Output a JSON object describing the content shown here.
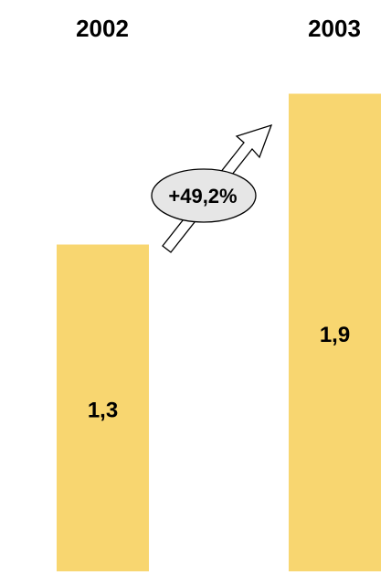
{
  "chart_data": {
    "type": "bar",
    "categories": [
      "2002",
      "2003"
    ],
    "values": [
      1.3,
      1.9
    ],
    "value_labels": [
      "1,3",
      "1,9"
    ],
    "change_label": "+49,2%",
    "ylim": [
      0,
      2.0
    ],
    "grid": false,
    "bar_color": "#F8D670",
    "badge_color": "#E6E6E6"
  }
}
